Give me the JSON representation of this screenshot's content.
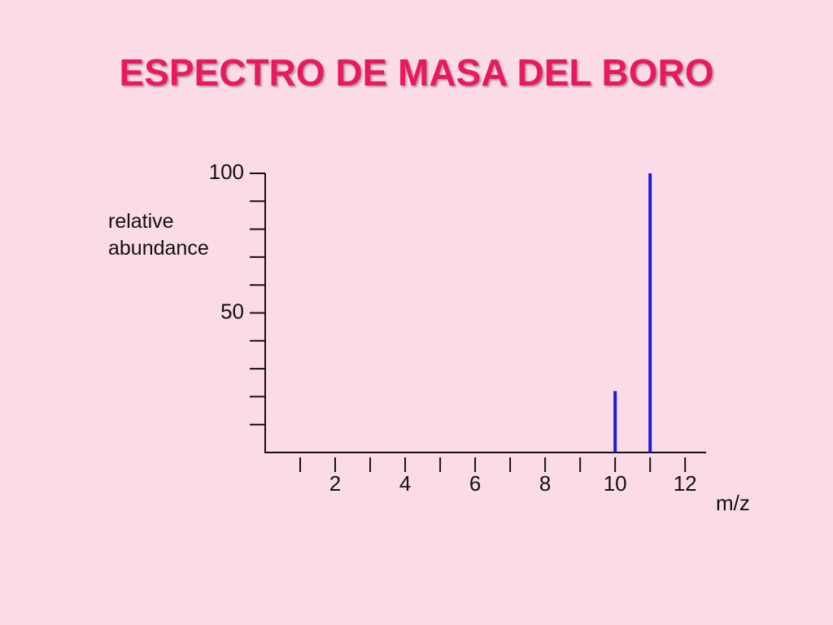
{
  "chart_data": {
    "type": "stem",
    "title": "ESPECTRO DE MASA DEL BORO",
    "ylabel": "relative abundance",
    "xlabel": "m/z",
    "x": [
      10,
      11
    ],
    "values": [
      22,
      100
    ],
    "color": "#1c1ce0",
    "xlim": [
      0,
      12.6
    ],
    "xticks": [
      2,
      4,
      6,
      8,
      10,
      12
    ],
    "xminorticks": [
      1,
      3,
      5,
      7,
      9,
      11
    ],
    "ylim": [
      0,
      100
    ],
    "yticks": [
      50,
      100
    ],
    "yminorticks": [
      10,
      20,
      30,
      40,
      60,
      70,
      80,
      90
    ]
  }
}
